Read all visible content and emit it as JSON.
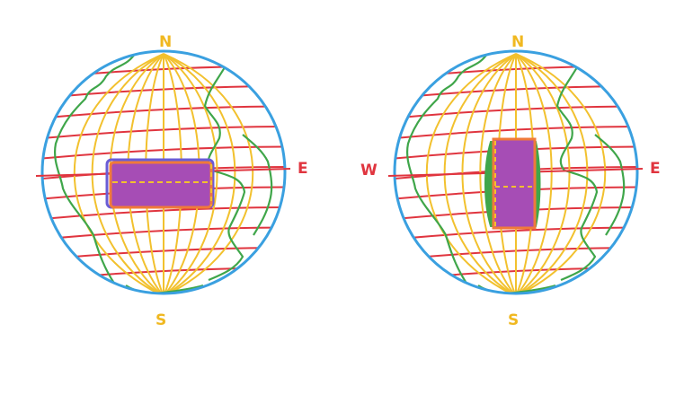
{
  "colors": {
    "background": "#ffffff",
    "globe_outline": "#3aa0e0",
    "meridians": "#f2c12e",
    "parallels": "#e0353f",
    "continents": "#3fa64a",
    "rectangle_fill": "#a64db5",
    "rectangle_border": "#f07a3a",
    "rectangle_outline_blue": "#6a5cd6",
    "label_ns": "#f0b820",
    "label_ew": "#e0353f",
    "rectangle_dash": "#f2c12e"
  },
  "globes": [
    {
      "labels": {
        "north": "N",
        "south": "S",
        "west": "",
        "east": "E"
      },
      "rectangle_orientation": "horizontal"
    },
    {
      "labels": {
        "north": "N",
        "south": "S",
        "west": "W",
        "east": "E"
      },
      "rectangle_orientation": "vertical"
    }
  ]
}
